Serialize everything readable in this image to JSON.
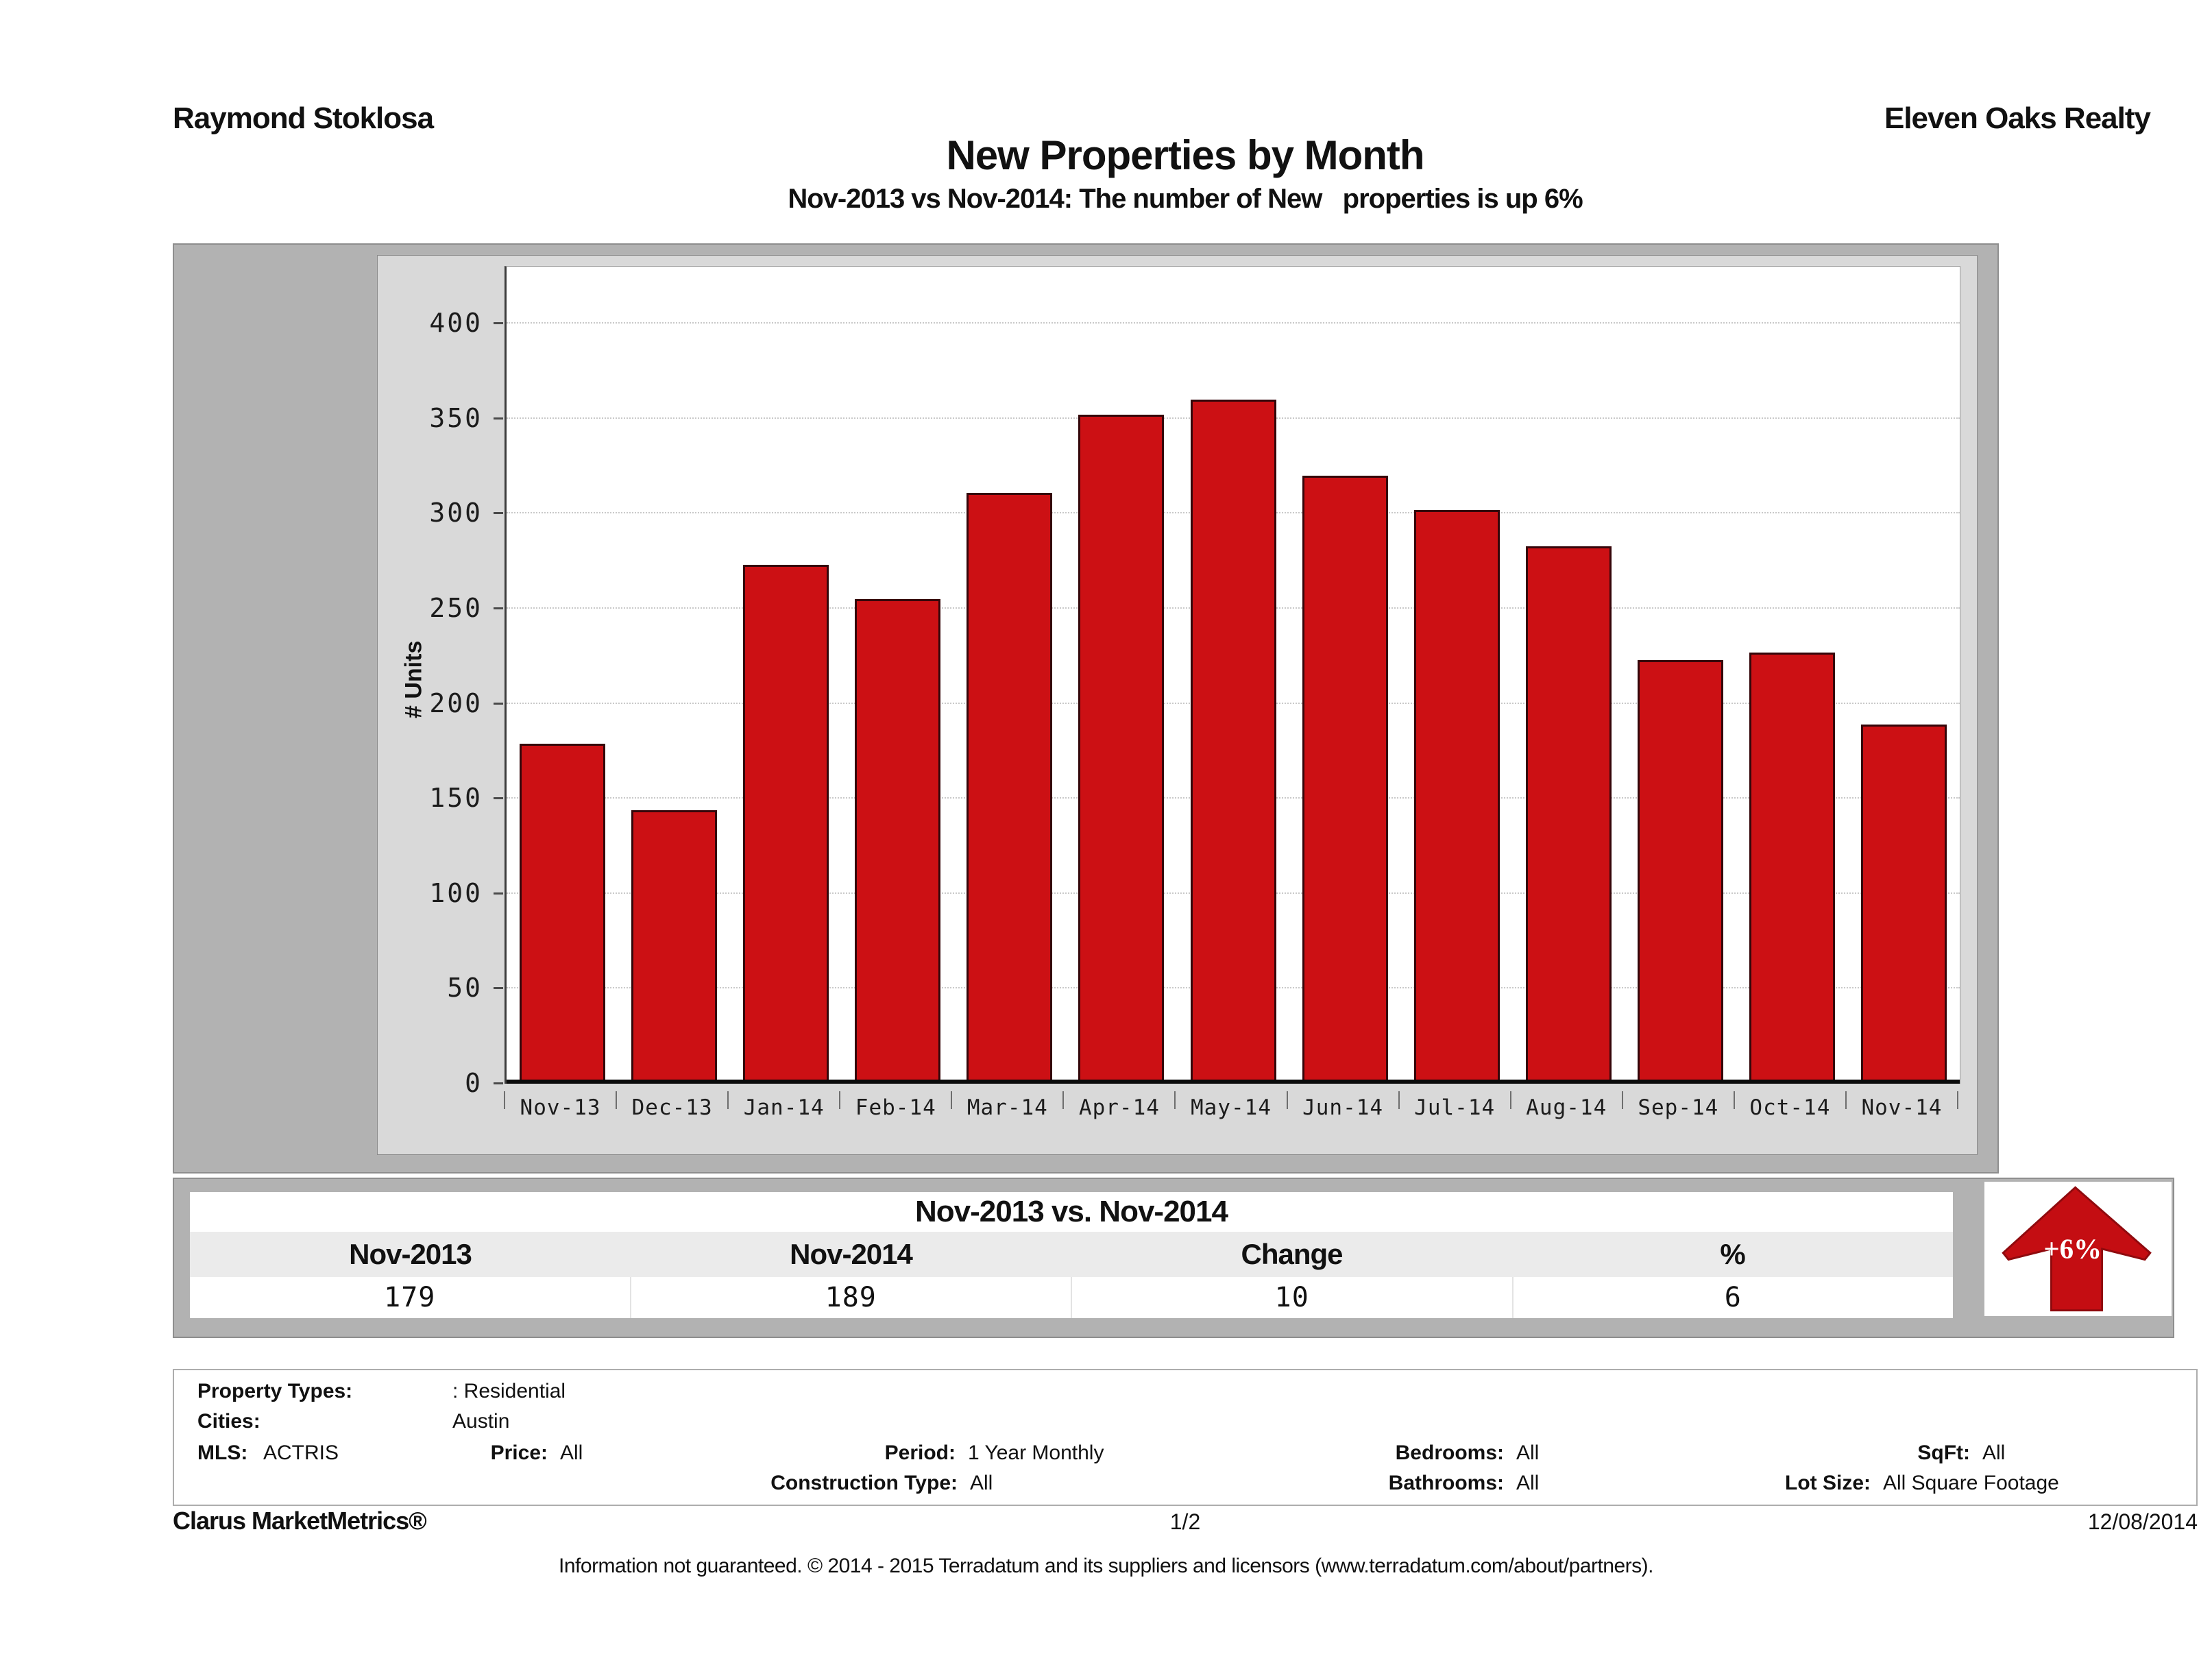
{
  "header": {
    "agent": "Raymond Stoklosa",
    "company": "Eleven Oaks Realty",
    "title": "New Properties by Month",
    "subtitle": "Nov-2013 vs Nov-2014: The number of New   properties is up 6%"
  },
  "chart_data": {
    "type": "bar",
    "categories": [
      "Nov-13",
      "Dec-13",
      "Jan-14",
      "Feb-14",
      "Mar-14",
      "Apr-14",
      "May-14",
      "Jun-14",
      "Jul-14",
      "Aug-14",
      "Sep-14",
      "Oct-14",
      "Nov-14"
    ],
    "values": [
      179,
      144,
      273,
      255,
      311,
      352,
      360,
      320,
      302,
      283,
      223,
      227,
      189
    ],
    "title": "",
    "xlabel": "",
    "ylabel": "# Units",
    "ylim": [
      0,
      430
    ],
    "ytick_step": 50,
    "ytick_max": 400,
    "grid": "dotted horizontal",
    "bar_color": "#cc1014",
    "bar_border_color": "#35060a",
    "legend": "none"
  },
  "comparison": {
    "title": "Nov-2013 vs. Nov-2014",
    "columns": [
      "Nov-2013",
      "Nov-2014",
      "Change",
      "%"
    ],
    "values": [
      "179",
      "189",
      "10",
      "6"
    ],
    "arrow_label": "+6%",
    "arrow_color": "#c40d12",
    "arrow_direction": "up"
  },
  "filters": {
    "rows": [
      [
        {
          "label": "Property Types:",
          "value": ": Residential"
        }
      ],
      [
        {
          "label": "Cities:",
          "value": "Austin"
        }
      ],
      [
        {
          "label": "MLS:",
          "value": "ACTRIS"
        },
        {
          "label": "Price:",
          "value": "All"
        },
        {
          "label": "Period:",
          "value": "1 Year Monthly"
        },
        {
          "label": "Bedrooms:",
          "value": "All"
        },
        {
          "label": "SqFt:",
          "value": "All"
        }
      ],
      [
        {
          "label": "Construction Type:",
          "value": "All"
        },
        {
          "label": "Bathrooms:",
          "value": "All"
        },
        {
          "label": "Lot Size:",
          "value": "All Square Footage"
        }
      ]
    ]
  },
  "footer": {
    "brand": "Clarus MarketMetrics®",
    "page": "1/2",
    "date": "12/08/2014",
    "disclaimer": "Information not guaranteed. © 2014 - 2015 Terradatum and its suppliers and licensors (www.terradatum.com/about/partners)."
  }
}
